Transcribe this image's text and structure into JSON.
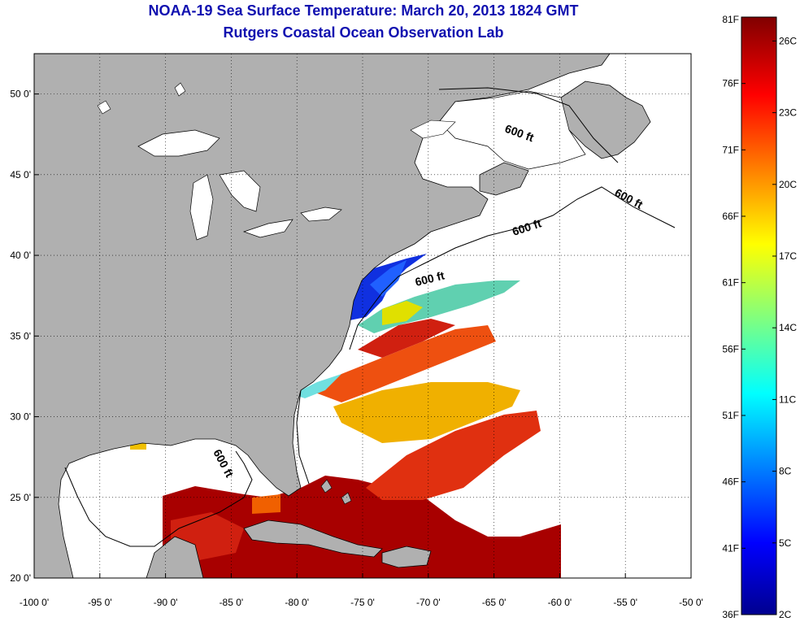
{
  "header": {
    "title": "NOAA-19 Sea Surface Temperature:  March 20, 2013 1824 GMT",
    "subtitle": "Rutgers Coastal Ocean Observation Lab"
  },
  "map": {
    "lon_range": [
      -100,
      -50
    ],
    "lat_range": [
      20,
      52.5
    ],
    "lon_ticks": [
      {
        "value": -100,
        "label": "-100 0'"
      },
      {
        "value": -95,
        "label": "-95 0'"
      },
      {
        "value": -90,
        "label": "-90 0'"
      },
      {
        "value": -85,
        "label": "-85 0'"
      },
      {
        "value": -80,
        "label": "-80 0'"
      },
      {
        "value": -75,
        "label": "-75 0'"
      },
      {
        "value": -70,
        "label": "-70 0'"
      },
      {
        "value": -65,
        "label": "-65 0'"
      },
      {
        "value": -60,
        "label": "-60 0'"
      },
      {
        "value": -55,
        "label": "-55 0'"
      },
      {
        "value": -50,
        "label": "-50 0'"
      }
    ],
    "lat_ticks": [
      {
        "value": 20,
        "label": "20 0'"
      },
      {
        "value": 25,
        "label": "25 0'"
      },
      {
        "value": 30,
        "label": "30 0'"
      },
      {
        "value": 35,
        "label": "35 0'"
      },
      {
        "value": 40,
        "label": "40 0'"
      },
      {
        "value": 45,
        "label": "45 0'"
      },
      {
        "value": 50,
        "label": "50 0'"
      }
    ],
    "grid": "dotted",
    "colors": {
      "land": "#b0b0b0",
      "lakes": "#ffffff",
      "no_data": "#ffffff"
    },
    "contour_labels": [
      "600 ft",
      "600 ft",
      "600 ft",
      "600 ft",
      "600 ft"
    ]
  },
  "colorbar": {
    "range_f": [
      36,
      81
    ],
    "range_c": [
      2,
      27
    ],
    "f_ticks": [
      "81F",
      "76F",
      "71F",
      "66F",
      "61F",
      "56F",
      "51F",
      "46F",
      "41F",
      "36F"
    ],
    "c_ticks": [
      "26C",
      "23C",
      "20C",
      "17C",
      "14C",
      "11C",
      "8C",
      "5C",
      "2C"
    ],
    "colormap": "jet"
  }
}
